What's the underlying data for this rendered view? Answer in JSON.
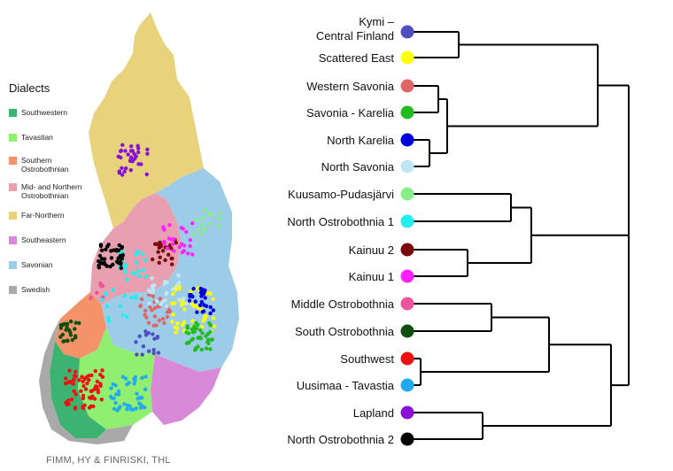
{
  "legend": {
    "title": "Dialects",
    "items": [
      {
        "label": "Southwestern",
        "color": "#3cb371"
      },
      {
        "label": "Tavastian",
        "color": "#90ee70"
      },
      {
        "label": "Southern Ostrobothnian",
        "color": "#f4926a"
      },
      {
        "label": "Mid- and Northern Ostrobothnian",
        "color": "#e8a0b0"
      },
      {
        "label": "Far-Northern",
        "color": "#e8d27c"
      },
      {
        "label": "Southeastern",
        "color": "#d88ad8"
      },
      {
        "label": "Savonian",
        "color": "#9ccce8"
      },
      {
        "label": "Swedish",
        "color": "#a9a9a9"
      }
    ]
  },
  "credit": "FIMM, HY & FINRISKI, THL",
  "dendrogram": {
    "leaves": [
      {
        "label": "Kymi –\nCentral Finland",
        "color": "#4f4fbf"
      },
      {
        "label": "Scattered East",
        "color": "#ffff00"
      },
      {
        "label": "Western Savonia",
        "color": "#e06666"
      },
      {
        "label": "Savonia - Karelia",
        "color": "#22bb22"
      },
      {
        "label": "North Karelia",
        "color": "#0000dd"
      },
      {
        "label": "North Savonia",
        "color": "#bfe6f5"
      },
      {
        "label": "Kuusamo-Pudasjärvi",
        "color": "#88ee88"
      },
      {
        "label": "North Ostrobothnia 1",
        "color": "#22eeee"
      },
      {
        "label": "Kainuu 2",
        "color": "#7a0a0a"
      },
      {
        "label": "Kainuu 1",
        "color": "#ff22ff"
      },
      {
        "label": "Middle Ostrobothnia",
        "color": "#ee5599"
      },
      {
        "label": "South Ostrobothnia",
        "color": "#0f4f0f"
      },
      {
        "label": "Southwest",
        "color": "#ee1111"
      },
      {
        "label": "Uusimaa - Tavastia",
        "color": "#22aaee"
      },
      {
        "label": "Lapland",
        "color": "#8a10d8"
      },
      {
        "label": "North Ostrobothnia 2",
        "color": "#000000"
      }
    ]
  }
}
